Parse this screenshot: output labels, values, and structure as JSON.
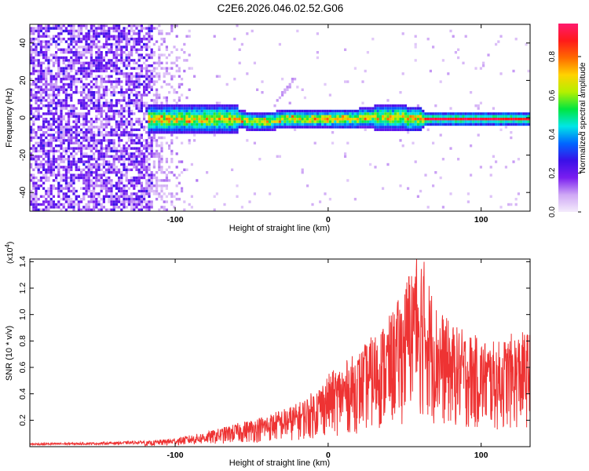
{
  "title": "C2E6.2026.046.02.52.G06",
  "chart_data": [
    {
      "type": "heatmap",
      "title": "C2E6.2026.046.02.52.G06",
      "xlabel": "Height of straight line (km)",
      "ylabel": "Frequency (Hz)",
      "xlim": [
        -195,
        132
      ],
      "ylim": [
        -50,
        50
      ],
      "x_ticks": [
        -100,
        0,
        100
      ],
      "y_ticks": [
        -40,
        -20,
        0,
        20,
        40
      ],
      "x_tick_labels": [
        "-100",
        "0",
        "100"
      ],
      "y_tick_labels": [
        "-40",
        "-20",
        "0",
        "20",
        "40"
      ],
      "colorbar": {
        "label": "Normalized spectral amplitude",
        "range": [
          0.0,
          0.97
        ],
        "ticks": [
          0.0,
          0.2,
          0.4,
          0.6,
          0.8
        ],
        "tick_labels": [
          "0.0",
          "0.2",
          "0.4",
          "0.6",
          "0.8"
        ],
        "colors": [
          "#f4ecfc",
          "#cfa8f5",
          "#7a1ef0",
          "#3a10e8",
          "#0066ff",
          "#00e6e6",
          "#00e640",
          "#b4f000",
          "#ffd200",
          "#ff6a00",
          "#ff1a1a",
          "#ff1a6e"
        ]
      },
      "features": {
        "noise_region_x_max": -115,
        "sparse_region_x_max": -85,
        "band_center_hz": 0,
        "band_start_x": -118,
        "strong_line_start_x": 62,
        "spur": {
          "x_from": -35,
          "x_to": -22,
          "y_from": 10,
          "y_to": 22
        }
      }
    },
    {
      "type": "line",
      "xlabel": "Height of straight line (km)",
      "ylabel": "SNR (10 * v/v)",
      "y_multiplier_label": "(x10",
      "y_multiplier_exp": "4",
      "y_multiplier_close": ")",
      "xlim": [
        -195,
        132
      ],
      "ylim": [
        0.0,
        1.42
      ],
      "x_ticks": [
        -100,
        0,
        100
      ],
      "y_ticks": [
        0.2,
        0.4,
        0.6,
        0.8,
        1.0,
        1.2,
        1.4
      ],
      "x_tick_labels": [
        "-100",
        "0",
        "100"
      ],
      "y_tick_labels": [
        "0.2",
        "0.4",
        "0.6",
        "0.8",
        "1.0",
        "1.2",
        "1.4"
      ],
      "series": [
        {
          "name": "SNR",
          "color": "#ee3333",
          "envelope": {
            "x": [
              -195,
              -150,
              -120,
              -100,
              -80,
              -60,
              -40,
              -20,
              -10,
              0,
              10,
              20,
              30,
              40,
              50,
              55,
              60,
              70,
              80,
              90,
              100,
              110,
              120,
              132
            ],
            "y": [
              0.02,
              0.025,
              0.035,
              0.06,
              0.1,
              0.16,
              0.22,
              0.3,
              0.38,
              0.5,
              0.58,
              0.66,
              0.78,
              0.9,
              1.1,
              1.35,
              1.4,
              1.0,
              0.85,
              0.8,
              0.75,
              0.72,
              0.78,
              0.8
            ]
          }
        }
      ]
    }
  ]
}
